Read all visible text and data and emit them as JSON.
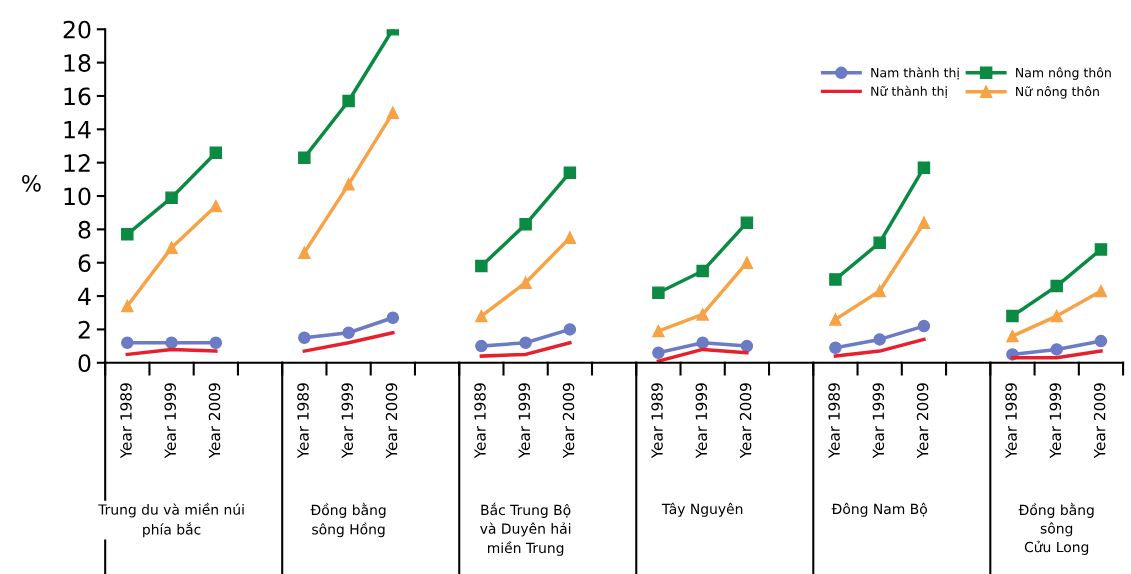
{
  "chart_data": {
    "type": "line",
    "ylabel": "%",
    "categories": [
      "Year 1989",
      "Year 1999",
      "Year 2009",
      null,
      "Year 1989",
      "Year 1999",
      "Year 2009",
      null,
      "Year 1989",
      "Year 1999",
      "Year 2009",
      null,
      "Year 1989",
      "Year 1999",
      "Year 2009",
      null,
      "Year 1989",
      "Year 1999",
      "Year 2009",
      null,
      "Year 1989",
      "Year 1999",
      "Year 2009"
    ],
    "series": [
      {
        "name": "Nam thành thị",
        "color": "#6b7bc4",
        "marker": "circle",
        "values": [
          1.2,
          1.2,
          1.2,
          null,
          1.5,
          1.8,
          2.7,
          null,
          1.0,
          1.2,
          2.0,
          null,
          0.6,
          1.2,
          1.0,
          null,
          0.9,
          1.4,
          2.2,
          null,
          0.5,
          0.8,
          1.3
        ]
      },
      {
        "name": "Nữ thành thị",
        "color": "#e8202e",
        "marker": "none",
        "values": [
          0.5,
          0.8,
          0.7,
          null,
          0.7,
          1.2,
          1.8,
          null,
          0.4,
          0.5,
          1.2,
          null,
          0.1,
          0.8,
          0.6,
          null,
          0.4,
          0.7,
          1.4,
          null,
          0.3,
          0.3,
          0.7
        ]
      },
      {
        "name": "Nam nông thôn",
        "color": "#0a8a43",
        "marker": "square",
        "values": [
          7.7,
          9.9,
          12.6,
          null,
          12.3,
          15.7,
          20.0,
          null,
          5.8,
          8.3,
          11.4,
          null,
          4.2,
          5.5,
          8.4,
          null,
          5.0,
          7.2,
          11.7,
          null,
          2.8,
          4.6,
          6.8
        ]
      },
      {
        "name": "Nữ nông thôn",
        "color": "#f7a245",
        "marker": "triangle",
        "values": [
          3.4,
          6.9,
          9.4,
          null,
          6.6,
          10.7,
          15.0,
          null,
          2.8,
          4.8,
          7.5,
          null,
          1.9,
          2.9,
          6.0,
          null,
          2.6,
          4.3,
          8.4,
          null,
          1.6,
          2.8,
          4.3
        ]
      }
    ],
    "ylim": [
      0,
      20
    ],
    "yticks": [
      0,
      2,
      4,
      6,
      8,
      10,
      12,
      14,
      16,
      18,
      20
    ],
    "grid": false,
    "legend": "top right",
    "line_style": "solid",
    "annotations": [
      "Trung du và miền núi\nphía bắc",
      "Đồng bằng\nsông Hồng",
      "Bắc Trung Bộ\nvà Duyên hải\nmiền Trung",
      "Tây Nguyên",
      "Đông Nam Bộ",
      "Đồng bằng\nsông\nCửu Long"
    ]
  }
}
